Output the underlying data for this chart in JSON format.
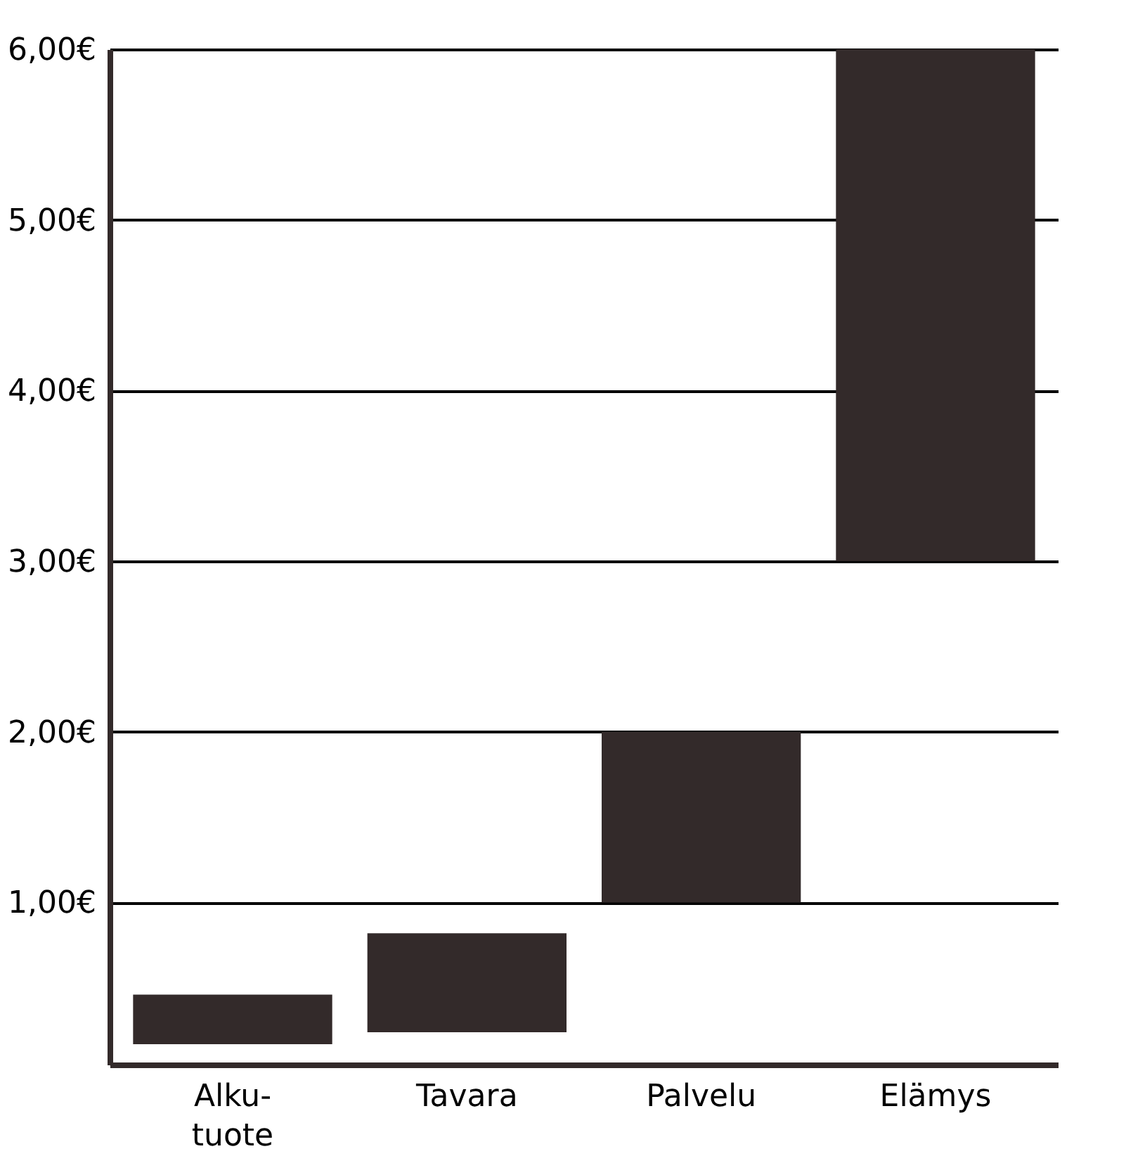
{
  "chart_data": {
    "type": "bar",
    "categories": [
      "Alku-\ntuote",
      "Tavara",
      "Palvelu",
      "Elämys"
    ],
    "base": [
      0.17,
      0.24,
      1,
      3
    ],
    "values": [
      0.29,
      0.58,
      1,
      3
    ],
    "color": "#332a2a",
    "ylim": [
      0.05,
      6
    ],
    "yticks": [
      {
        "value": 1,
        "label": "1,00€"
      },
      {
        "value": 2,
        "label": "2,00€"
      },
      {
        "value": 3,
        "label": "3,00€"
      },
      {
        "value": 4,
        "label": "4,00€"
      },
      {
        "value": 5,
        "label": "5,00€"
      },
      {
        "value": 6,
        "label": "6,00€"
      }
    ],
    "grid": "y"
  }
}
